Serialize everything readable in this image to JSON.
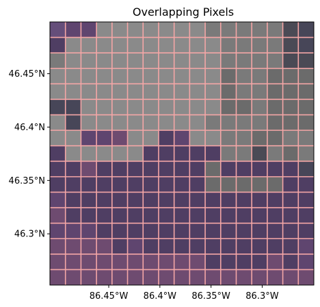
{
  "title": "Overlapping Pixels",
  "map": {
    "extent": {
      "lon_min": -86.5075,
      "lon_max": -86.2495,
      "lat_min": 46.252,
      "lat_max": 46.4985
    },
    "x_ticks": [
      {
        "lon": -86.45,
        "label": "86.45°W"
      },
      {
        "lon": -86.4,
        "label": "86.4°W"
      },
      {
        "lon": -86.35,
        "label": "86.35°W"
      },
      {
        "lon": -86.3,
        "label": "86.3°W"
      }
    ],
    "y_ticks": [
      {
        "lat": 46.45,
        "label": "46.45°N"
      },
      {
        "lat": 46.4,
        "label": "46.4°N"
      },
      {
        "lat": 46.35,
        "label": "46.35°N"
      },
      {
        "lat": 46.3,
        "label": "46.3°N"
      }
    ],
    "colors": {
      "grid_lines": "#f4a6a6",
      "frame": "#000000",
      "land_tone": "#5a3f6b",
      "cloud_tone": "#8c8c8c"
    },
    "pixel_grid": {
      "rows": 17,
      "cols": 17,
      "palette": {
        "G": "#8a8a8a",
        "g": "#7a7a7a",
        "d": "#6b6b6b",
        "p": "#5f456f",
        "q": "#4f3e63",
        "r": "#6e4b70",
        "s": "#4a4a55",
        "t": "#654e7a",
        "b": "#474658",
        "k": "#3f3f4c"
      },
      "cells": [
        "tppGGGGGGGgggggsb",
        "qGGGGGGGGGGggggsb",
        "gGGGGGGGGGGggggss",
        "GGGGGGGGGGGdggddd",
        "GGGGGGGGGGGdggddd",
        "bbGGGGGGGGGddgddd",
        "GbGGGGGGGGggggddd",
        "GGpprGGqpGGggddgg",
        "qGGGGGqqqqqggsgdg",
        "qqrqqqqqqqdqqqqqb",
        "qqqqqqqqqqdddddqq",
        "pqqqqqqqqqqqqqqqq",
        "rqqqqqqqqqqqqqqqq",
        "pppqqqqqqqqqqqqqq",
        "rrrrqpqqqqqqqqqqp",
        "rrrrrrrrrrqqqqrqp",
        "rrrrrrrrrrrrrrrrr"
      ]
    }
  }
}
